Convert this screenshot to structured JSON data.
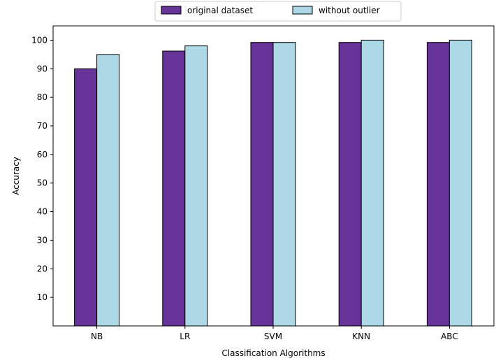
{
  "chart_data": {
    "type": "bar",
    "categories": [
      "NB",
      "LR",
      "SVM",
      "KNN",
      "ABC"
    ],
    "series": [
      {
        "name": "original dataset",
        "values": [
          90,
          96.2,
          99.2,
          99.2,
          99.2
        ],
        "color": "#663399"
      },
      {
        "name": "without outlier",
        "values": [
          95,
          98,
          99.2,
          100,
          100
        ],
        "color": "#add8e6"
      }
    ],
    "title": "",
    "xlabel": "Classification Algorithms",
    "ylabel": "Accuracy",
    "ylim": [
      0,
      105
    ],
    "yticks": [
      10,
      20,
      30,
      40,
      50,
      60,
      70,
      80,
      90,
      100
    ],
    "grid": false,
    "legend_placement": "top-center",
    "edge_color": "#000000"
  }
}
